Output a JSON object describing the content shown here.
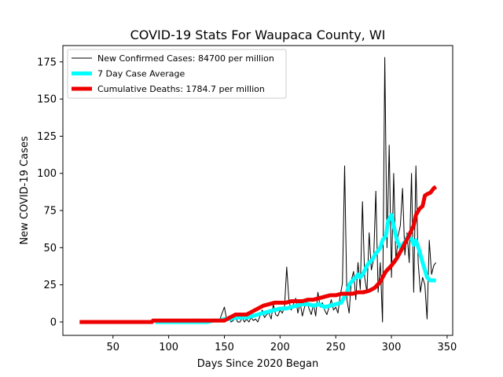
{
  "chart_data": {
    "type": "line",
    "title": "COVID-19 Stats For Waupaca County, WI",
    "xlabel": "Days Since 2020 Began",
    "ylabel": "New COVID-19 Cases",
    "xlim": [
      5,
      355
    ],
    "ylim": [
      -9,
      186
    ],
    "xticks": [
      50,
      100,
      150,
      200,
      250,
      300,
      350
    ],
    "yticks": [
      0,
      25,
      50,
      75,
      100,
      125,
      150,
      175
    ],
    "grid": false,
    "legend_position": "top-left",
    "series": [
      {
        "name": "New Confirmed Cases: 84700 per million",
        "color": "#000000",
        "width": 1,
        "x": [
          85,
          90,
          95,
          100,
          105,
          110,
          115,
          120,
          125,
          130,
          135,
          140,
          145,
          150,
          152,
          154,
          156,
          158,
          160,
          162,
          164,
          166,
          168,
          170,
          172,
          174,
          176,
          178,
          180,
          182,
          184,
          186,
          188,
          190,
          192,
          194,
          196,
          198,
          200,
          202,
          204,
          206,
          208,
          210,
          212,
          214,
          216,
          218,
          220,
          222,
          224,
          226,
          228,
          230,
          232,
          234,
          236,
          238,
          240,
          242,
          244,
          246,
          248,
          250,
          252,
          254,
          256,
          258,
          260,
          262,
          264,
          266,
          268,
          270,
          272,
          274,
          276,
          278,
          280,
          282,
          284,
          286,
          288,
          290,
          292,
          294,
          296,
          298,
          300,
          302,
          304,
          306,
          308,
          310,
          312,
          314,
          316,
          318,
          320,
          322,
          324,
          326,
          328,
          330,
          332,
          334,
          336,
          338,
          340
        ],
        "y": [
          0,
          0,
          1,
          0,
          0,
          1,
          0,
          0,
          2,
          0,
          0,
          1,
          0,
          10,
          2,
          4,
          0,
          1,
          3,
          0,
          0,
          3,
          0,
          2,
          0,
          3,
          1,
          2,
          0,
          4,
          8,
          3,
          5,
          6,
          2,
          12,
          5,
          4,
          8,
          6,
          10,
          37,
          14,
          8,
          12,
          16,
          6,
          13,
          4,
          10,
          14,
          9,
          5,
          12,
          4,
          20,
          10,
          13,
          8,
          5,
          10,
          15,
          8,
          10,
          6,
          18,
          26,
          105,
          15,
          6,
          28,
          34,
          15,
          40,
          22,
          81,
          30,
          20,
          60,
          35,
          42,
          88,
          20,
          40,
          0,
          178,
          50,
          119,
          30,
          100,
          40,
          58,
          65,
          90,
          45,
          60,
          40,
          100,
          20,
          105,
          40,
          20,
          30,
          25,
          2,
          55,
          32,
          38,
          40
        ]
      },
      {
        "name": "7 Day Case Average",
        "color": "#00ffff",
        "width": 5,
        "x": [
          88,
          95,
          100,
          105,
          110,
          115,
          120,
          125,
          130,
          135,
          140,
          145,
          150,
          155,
          160,
          165,
          170,
          175,
          180,
          185,
          190,
          195,
          200,
          205,
          210,
          215,
          220,
          225,
          230,
          235,
          240,
          245,
          250,
          255,
          260,
          262,
          265,
          268,
          270,
          272,
          275,
          278,
          280,
          283,
          285,
          288,
          290,
          292,
          295,
          297,
          300,
          302,
          305,
          308,
          310,
          313,
          315,
          318,
          320,
          322,
          325,
          328,
          330,
          332,
          335,
          338,
          340
        ],
        "y": [
          0,
          0,
          0,
          0,
          0,
          0,
          0,
          0,
          0,
          0,
          1,
          1,
          2,
          2,
          3,
          3,
          3,
          4,
          5,
          6,
          7,
          8,
          9,
          9,
          10,
          11,
          12,
          12,
          11,
          12,
          10,
          11,
          12,
          13,
          20,
          25,
          28,
          30,
          32,
          30,
          33,
          38,
          40,
          42,
          45,
          48,
          50,
          55,
          58,
          68,
          72,
          65,
          55,
          50,
          52,
          55,
          58,
          56,
          52,
          55,
          48,
          40,
          35,
          30,
          28,
          28,
          28
        ]
      },
      {
        "name": "Cumulative Deaths: 1784.7 per million",
        "color": "#ee0000",
        "width": 5,
        "x": [
          20,
          85,
          86,
          100,
          120,
          140,
          150,
          155,
          160,
          165,
          170,
          175,
          180,
          185,
          190,
          195,
          200,
          205,
          210,
          215,
          220,
          225,
          230,
          235,
          240,
          245,
          250,
          255,
          260,
          265,
          270,
          275,
          280,
          285,
          290,
          292,
          295,
          300,
          305,
          310,
          315,
          320,
          322,
          325,
          328,
          330,
          332,
          335,
          338,
          340
        ],
        "y": [
          0,
          0,
          1,
          1,
          1,
          1,
          1,
          3,
          5,
          5,
          5,
          7,
          9,
          11,
          12,
          13,
          13,
          13,
          14,
          14,
          14,
          15,
          15,
          16,
          17,
          18,
          18,
          19,
          19,
          19,
          20,
          20,
          21,
          23,
          27,
          30,
          34,
          38,
          43,
          50,
          57,
          65,
          72,
          76,
          78,
          85,
          86,
          87,
          90,
          91
        ]
      }
    ]
  }
}
